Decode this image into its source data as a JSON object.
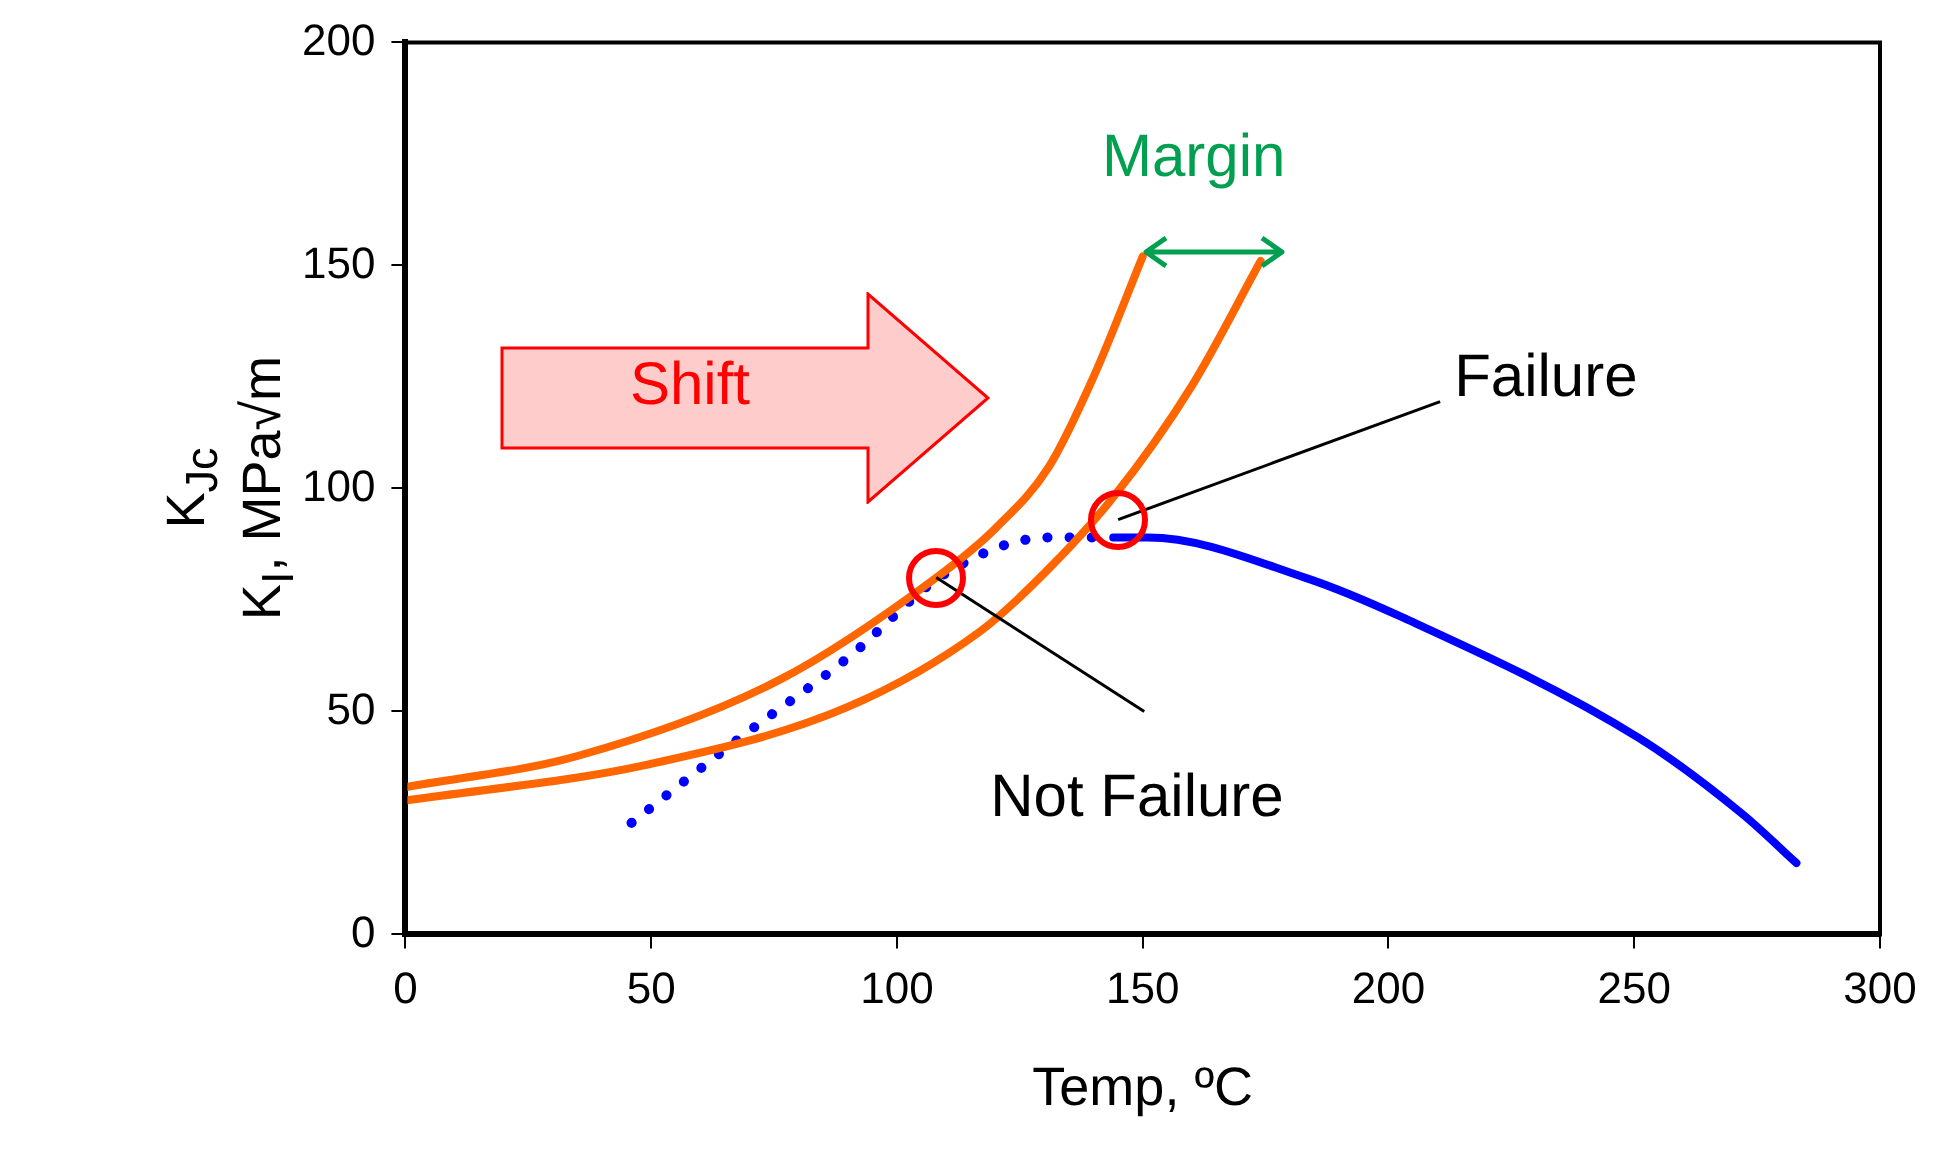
{
  "chart_data": {
    "type": "line",
    "xlabel": "Temp, ºC",
    "ylabel": "K$_{Jc}$\nK$_{I}$, MPa√m",
    "xlim": [
      0,
      300
    ],
    "xticks": [
      0,
      50,
      100,
      150,
      200,
      250,
      300
    ],
    "ylim": [
      0,
      200
    ],
    "yticks": [
      0,
      50,
      100,
      150,
      200
    ],
    "grid": false,
    "legend": false,
    "marker": "none",
    "series": [
      {
        "color": "#ff6600",
        "line_style": "solid",
        "x": [
          0,
          35,
          76,
          108,
          120,
          131,
          140,
          150
        ],
        "values": [
          33,
          40,
          57,
          80,
          91,
          105,
          125,
          152
        ]
      },
      {
        "color": "#ff6600",
        "line_style": "solid",
        "x": [
          0,
          49,
          90,
          117,
          130,
          144,
          160,
          174
        ],
        "values": [
          30,
          38,
          51,
          68,
          81,
          98,
          123,
          151
        ]
      },
      {
        "color": "#0000ff",
        "line_style": "dotted",
        "x": [
          46,
          68,
          90,
          110,
          131,
          144
        ],
        "values": [
          25,
          44,
          62,
          81,
          89,
          89
        ]
      },
      {
        "color": "#0000ff",
        "line_style": "solid",
        "x": [
          144,
          151,
          183,
          203,
          251,
          272,
          283
        ],
        "values": [
          89,
          89,
          80,
          71,
          44,
          27,
          16
        ]
      }
    ],
    "annotations": [
      "Shift",
      "Margin",
      {
        "text": "Not Failure",
        "x": 108,
        "y": 80
      },
      {
        "text": "Failure",
        "x": 145,
        "y": 93
      }
    ]
  }
}
